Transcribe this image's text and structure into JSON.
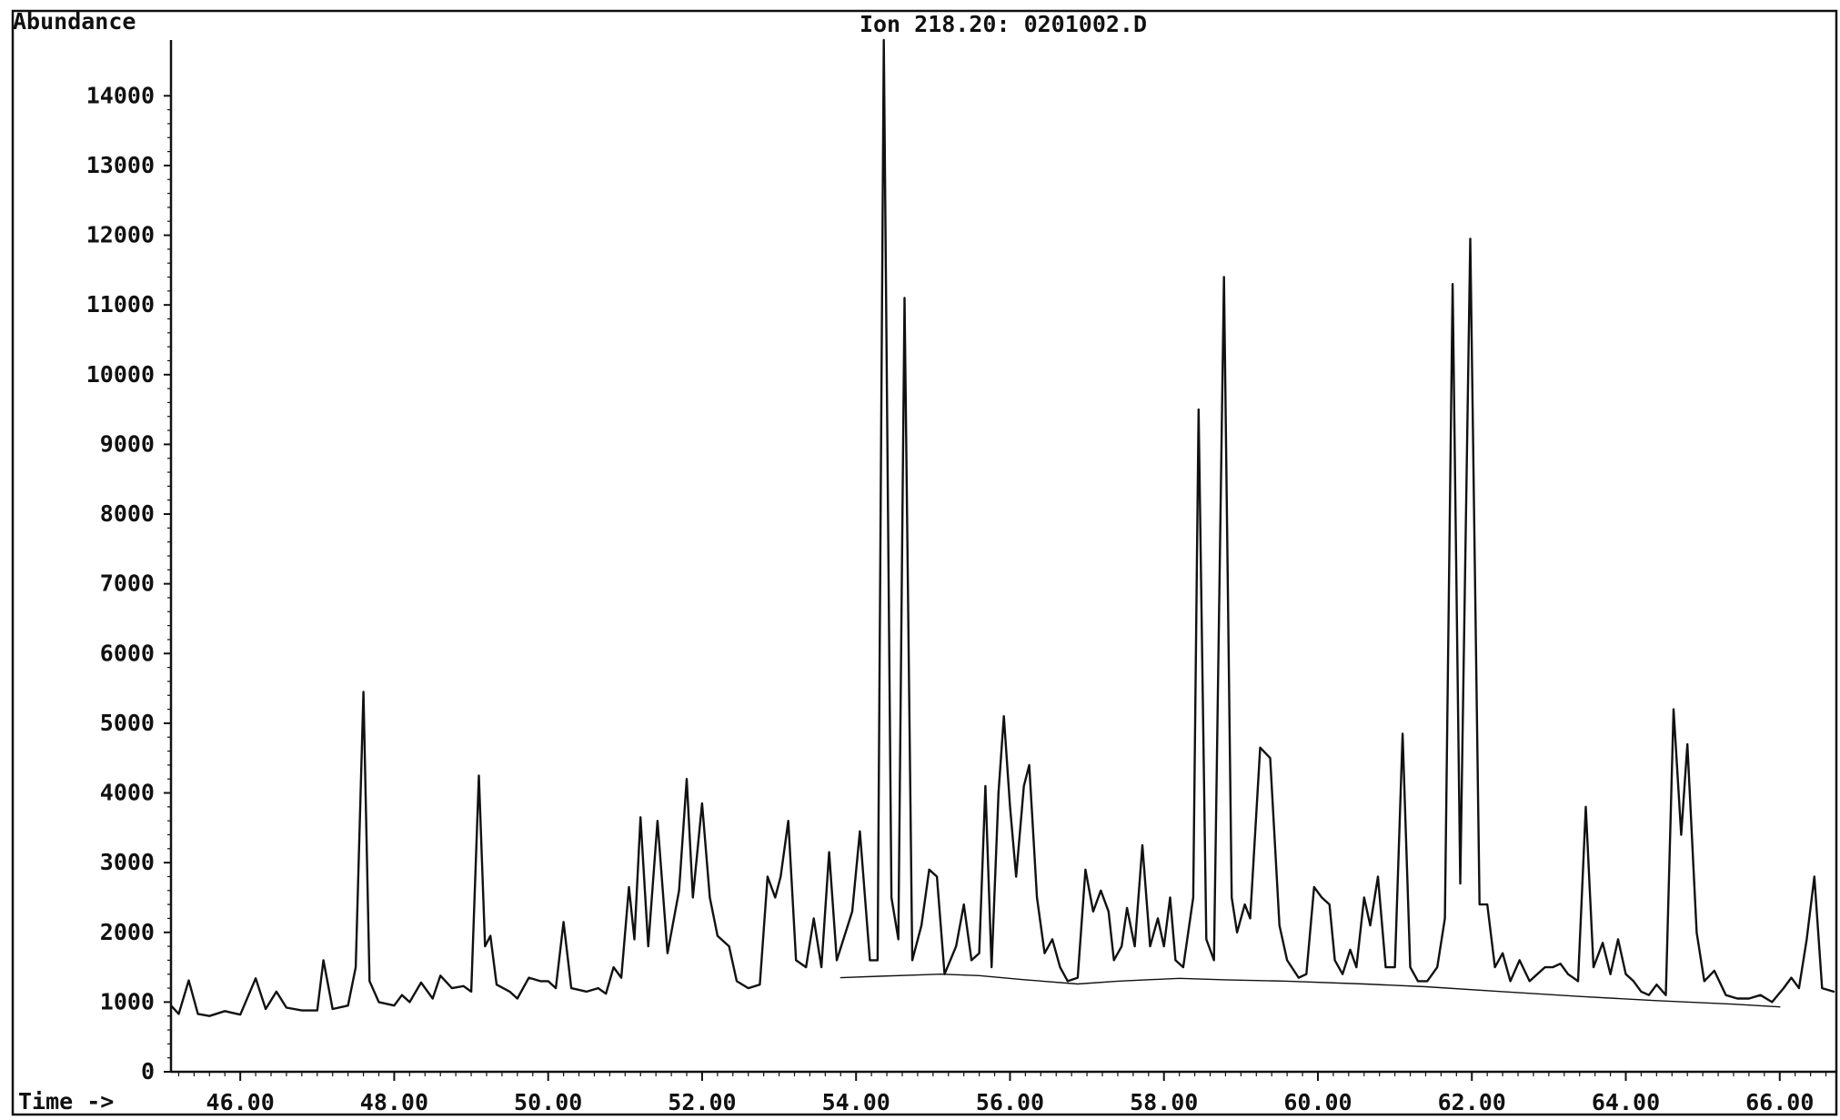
{
  "chart_data": {
    "type": "line",
    "title": "Ion 218.20: 0201002.D",
    "ylabel": "Abundance",
    "xlabel": "Time ->",
    "xlim": [
      45.1,
      66.7
    ],
    "ylim": [
      0,
      14800
    ],
    "x_ticks": [
      46,
      48,
      50,
      52,
      54,
      56,
      58,
      60,
      62,
      64,
      66
    ],
    "x_tick_labels": [
      "46.00",
      "48.00",
      "50.00",
      "52.00",
      "54.00",
      "56.00",
      "58.00",
      "60.00",
      "62.00",
      "64.00",
      "66.00"
    ],
    "y_ticks": [
      0,
      1000,
      2000,
      3000,
      4000,
      5000,
      6000,
      7000,
      8000,
      9000,
      10000,
      11000,
      12000,
      13000,
      14000
    ],
    "y_tick_labels": [
      "0",
      "1000",
      "2000",
      "3000",
      "4000",
      "5000",
      "6000",
      "7000",
      "8000",
      "9000",
      "10000",
      "11000",
      "12000",
      "13000",
      "14000"
    ],
    "grid": false,
    "series": [
      {
        "points": [
          [
            45.1,
            950
          ],
          [
            45.2,
            830
          ],
          [
            45.33,
            1310
          ],
          [
            45.45,
            830
          ],
          [
            45.6,
            800
          ],
          [
            45.8,
            870
          ],
          [
            46.0,
            820
          ],
          [
            46.2,
            1340
          ],
          [
            46.33,
            900
          ],
          [
            46.47,
            1150
          ],
          [
            46.6,
            920
          ],
          [
            46.8,
            880
          ],
          [
            47.0,
            880
          ],
          [
            47.08,
            1600
          ],
          [
            47.2,
            900
          ],
          [
            47.4,
            950
          ],
          [
            47.5,
            1500
          ],
          [
            47.6,
            5450
          ],
          [
            47.68,
            1300
          ],
          [
            47.8,
            1000
          ],
          [
            48.0,
            950
          ],
          [
            48.1,
            1100
          ],
          [
            48.2,
            1000
          ],
          [
            48.35,
            1280
          ],
          [
            48.5,
            1050
          ],
          [
            48.6,
            1380
          ],
          [
            48.75,
            1200
          ],
          [
            48.9,
            1230
          ],
          [
            49.0,
            1150
          ],
          [
            49.1,
            4250
          ],
          [
            49.18,
            1800
          ],
          [
            49.25,
            1950
          ],
          [
            49.33,
            1250
          ],
          [
            49.5,
            1150
          ],
          [
            49.6,
            1050
          ],
          [
            49.75,
            1350
          ],
          [
            49.9,
            1300
          ],
          [
            50.0,
            1300
          ],
          [
            50.1,
            1200
          ],
          [
            50.2,
            2150
          ],
          [
            50.3,
            1200
          ],
          [
            50.5,
            1150
          ],
          [
            50.65,
            1200
          ],
          [
            50.75,
            1120
          ],
          [
            50.85,
            1500
          ],
          [
            50.95,
            1350
          ],
          [
            51.05,
            2650
          ],
          [
            51.12,
            1900
          ],
          [
            51.2,
            3650
          ],
          [
            51.3,
            1800
          ],
          [
            51.42,
            3600
          ],
          [
            51.55,
            1700
          ],
          [
            51.7,
            2600
          ],
          [
            51.8,
            4200
          ],
          [
            51.88,
            2500
          ],
          [
            52.0,
            3850
          ],
          [
            52.1,
            2500
          ],
          [
            52.2,
            1950
          ],
          [
            52.35,
            1800
          ],
          [
            52.45,
            1300
          ],
          [
            52.6,
            1200
          ],
          [
            52.75,
            1250
          ],
          [
            52.85,
            2800
          ],
          [
            52.95,
            2500
          ],
          [
            53.02,
            2800
          ],
          [
            53.12,
            3600
          ],
          [
            53.22,
            1600
          ],
          [
            53.35,
            1500
          ],
          [
            53.45,
            2200
          ],
          [
            53.55,
            1500
          ],
          [
            53.65,
            3150
          ],
          [
            53.75,
            1600
          ],
          [
            53.85,
            1950
          ],
          [
            53.95,
            2300
          ],
          [
            54.05,
            3450
          ],
          [
            54.18,
            1600
          ],
          [
            54.28,
            1600
          ],
          [
            54.36,
            14800
          ],
          [
            54.46,
            2500
          ],
          [
            54.55,
            1900
          ],
          [
            54.63,
            11100
          ],
          [
            54.73,
            1600
          ],
          [
            54.85,
            2100
          ],
          [
            54.95,
            2900
          ],
          [
            55.05,
            2800
          ],
          [
            55.15,
            1400
          ],
          [
            55.3,
            1800
          ],
          [
            55.4,
            2400
          ],
          [
            55.5,
            1600
          ],
          [
            55.6,
            1700
          ],
          [
            55.68,
            4100
          ],
          [
            55.76,
            1500
          ],
          [
            55.85,
            4000
          ],
          [
            55.92,
            5100
          ],
          [
            56.0,
            3800
          ],
          [
            56.08,
            2800
          ],
          [
            56.18,
            4100
          ],
          [
            56.25,
            4400
          ],
          [
            56.35,
            2500
          ],
          [
            56.45,
            1700
          ],
          [
            56.55,
            1900
          ],
          [
            56.65,
            1500
          ],
          [
            56.75,
            1300
          ],
          [
            56.88,
            1350
          ],
          [
            56.98,
            2900
          ],
          [
            57.08,
            2300
          ],
          [
            57.18,
            2600
          ],
          [
            57.28,
            2300
          ],
          [
            57.35,
            1600
          ],
          [
            57.45,
            1800
          ],
          [
            57.52,
            2350
          ],
          [
            57.62,
            1800
          ],
          [
            57.72,
            3250
          ],
          [
            57.82,
            1800
          ],
          [
            57.92,
            2200
          ],
          [
            58.0,
            1800
          ],
          [
            58.08,
            2500
          ],
          [
            58.15,
            1600
          ],
          [
            58.25,
            1500
          ],
          [
            58.38,
            2500
          ],
          [
            58.45,
            9500
          ],
          [
            58.55,
            1900
          ],
          [
            58.65,
            1600
          ],
          [
            58.78,
            11400
          ],
          [
            58.88,
            2500
          ],
          [
            58.95,
            2000
          ],
          [
            59.05,
            2400
          ],
          [
            59.12,
            2200
          ],
          [
            59.25,
            4650
          ],
          [
            59.38,
            4500
          ],
          [
            59.5,
            2100
          ],
          [
            59.6,
            1600
          ],
          [
            59.75,
            1350
          ],
          [
            59.85,
            1400
          ],
          [
            59.95,
            2650
          ],
          [
            60.05,
            2500
          ],
          [
            60.15,
            2400
          ],
          [
            60.22,
            1600
          ],
          [
            60.32,
            1400
          ],
          [
            60.42,
            1750
          ],
          [
            60.5,
            1500
          ],
          [
            60.6,
            2500
          ],
          [
            60.68,
            2100
          ],
          [
            60.78,
            2800
          ],
          [
            60.88,
            1500
          ],
          [
            61.0,
            1500
          ],
          [
            61.1,
            4850
          ],
          [
            61.2,
            1500
          ],
          [
            61.3,
            1300
          ],
          [
            61.42,
            1300
          ],
          [
            61.55,
            1500
          ],
          [
            61.65,
            2200
          ],
          [
            61.75,
            11300
          ],
          [
            61.85,
            2700
          ],
          [
            61.98,
            11950
          ],
          [
            62.1,
            2400
          ],
          [
            62.2,
            2400
          ],
          [
            62.3,
            1500
          ],
          [
            62.4,
            1700
          ],
          [
            62.5,
            1300
          ],
          [
            62.62,
            1600
          ],
          [
            62.75,
            1300
          ],
          [
            62.85,
            1400
          ],
          [
            62.95,
            1500
          ],
          [
            63.05,
            1500
          ],
          [
            63.15,
            1550
          ],
          [
            63.25,
            1400
          ],
          [
            63.38,
            1300
          ],
          [
            63.48,
            3800
          ],
          [
            63.58,
            1500
          ],
          [
            63.7,
            1850
          ],
          [
            63.8,
            1400
          ],
          [
            63.9,
            1900
          ],
          [
            64.0,
            1400
          ],
          [
            64.1,
            1300
          ],
          [
            64.2,
            1150
          ],
          [
            64.3,
            1100
          ],
          [
            64.4,
            1250
          ],
          [
            64.52,
            1100
          ],
          [
            64.62,
            5200
          ],
          [
            64.72,
            3400
          ],
          [
            64.8,
            4700
          ],
          [
            64.92,
            2000
          ],
          [
            65.02,
            1300
          ],
          [
            65.15,
            1450
          ],
          [
            65.3,
            1100
          ],
          [
            65.45,
            1050
          ],
          [
            65.6,
            1050
          ],
          [
            65.75,
            1100
          ],
          [
            65.9,
            1000
          ],
          [
            66.05,
            1200
          ],
          [
            66.15,
            1350
          ],
          [
            66.25,
            1200
          ],
          [
            66.35,
            1900
          ],
          [
            66.45,
            2800
          ],
          [
            66.55,
            1200
          ],
          [
            66.7,
            1150
          ]
        ]
      },
      {
        "points": [
          [
            53.8,
            1350
          ],
          [
            54.3,
            1370
          ],
          [
            55.1,
            1400
          ],
          [
            55.6,
            1380
          ],
          [
            56.2,
            1320
          ],
          [
            56.88,
            1260
          ],
          [
            57.4,
            1300
          ],
          [
            58.2,
            1340
          ],
          [
            58.8,
            1320
          ],
          [
            59.6,
            1300
          ],
          [
            60.6,
            1260
          ],
          [
            61.4,
            1220
          ],
          [
            62.4,
            1150
          ],
          [
            63.4,
            1080
          ],
          [
            64.4,
            1020
          ],
          [
            65.4,
            970
          ],
          [
            66.0,
            930
          ]
        ]
      }
    ],
    "annotations": [],
    "legend": "none"
  }
}
